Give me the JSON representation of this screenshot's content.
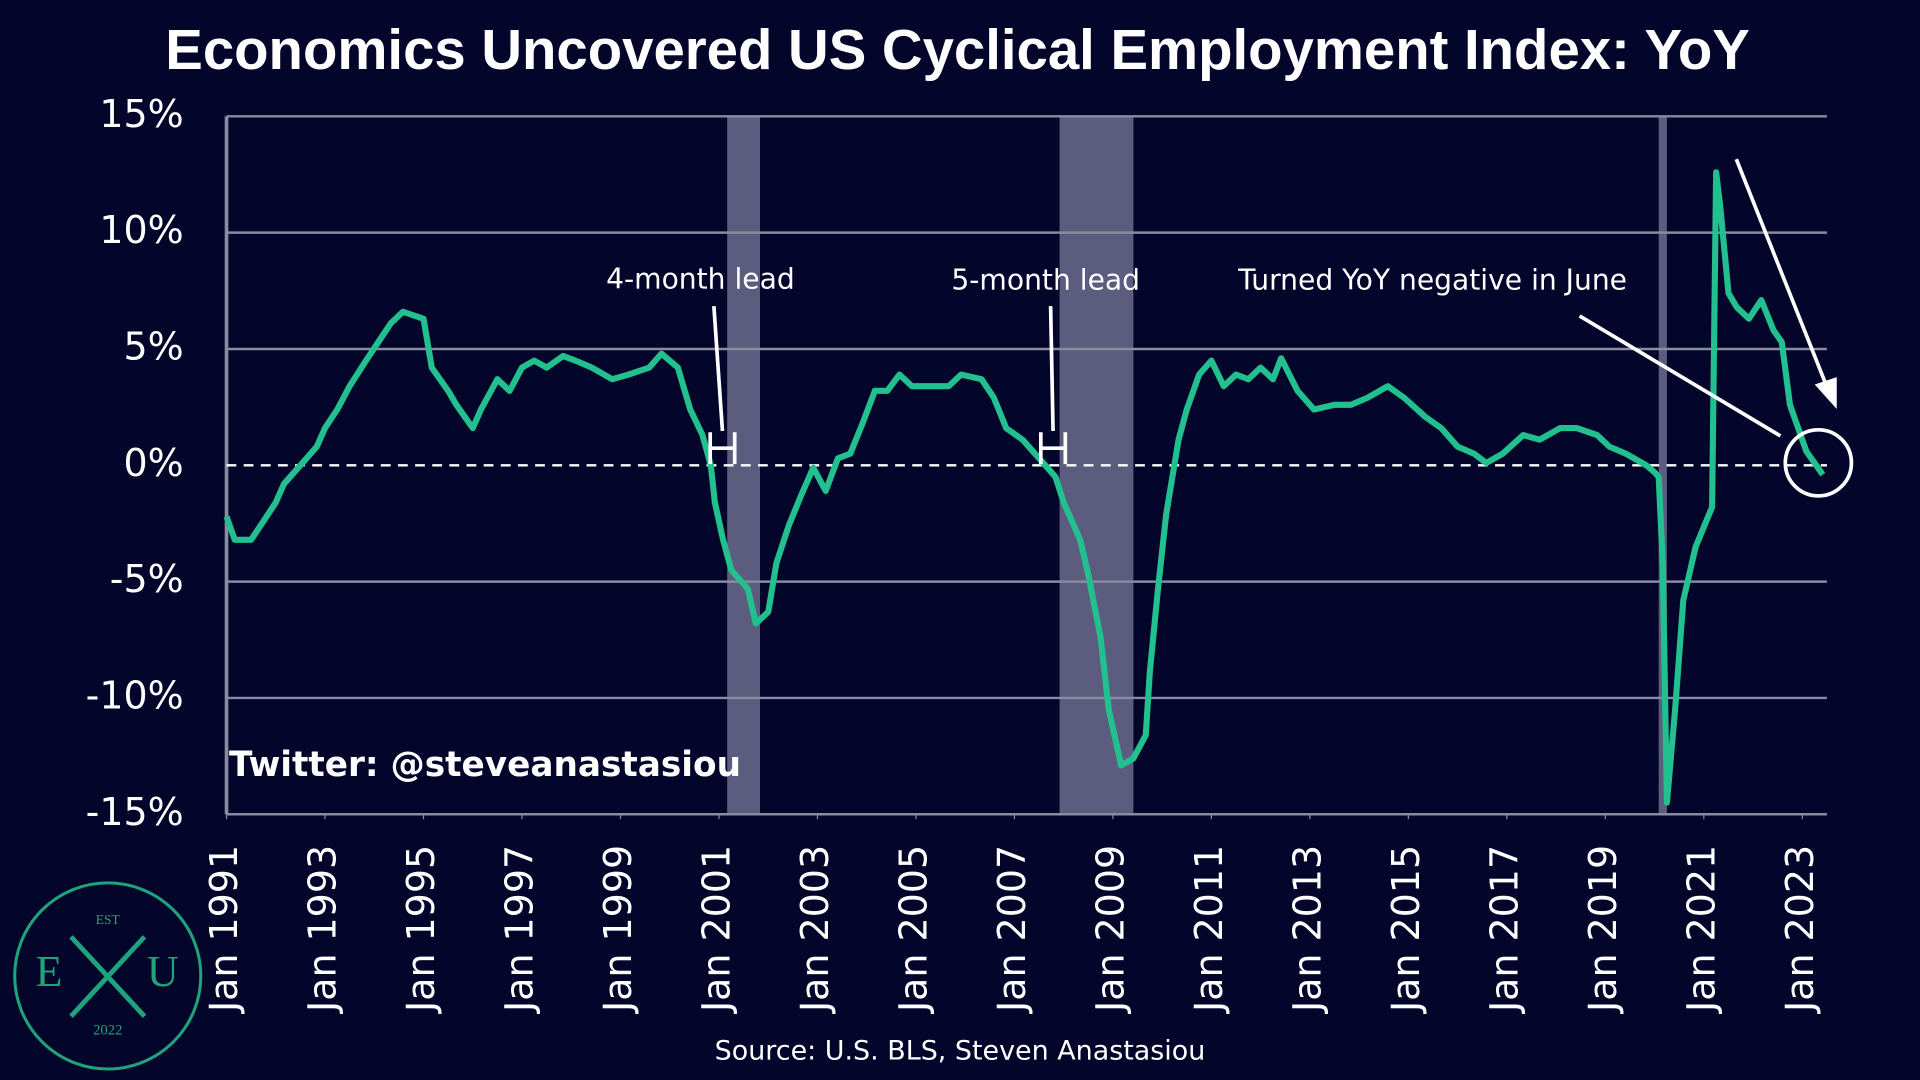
{
  "chart_data": {
    "type": "line",
    "title": "Economics Uncovered US Cyclical Employment Index: YoY",
    "source": "Source: U.S. BLS, Steven Anastasiou",
    "watermark": "Twitter: @steveanastasiou",
    "annotations": [
      "4-month lead",
      "5-month lead",
      "Turned YoY negative in June"
    ],
    "logo": {
      "top": "EST",
      "left": "E",
      "right": "U",
      "bottom": "2022"
    },
    "x": [
      "1991-01",
      "1991-03",
      "1991-07",
      "1991-10",
      "1992-01",
      "1992-03",
      "1992-07",
      "1992-11",
      "1993-01",
      "1993-04",
      "1993-07",
      "1993-11",
      "1994-02",
      "1994-05",
      "1994-08",
      "1995-01",
      "1995-03",
      "1995-07",
      "1995-09",
      "1996-01",
      "1996-03",
      "1996-07",
      "1996-10",
      "1997-01",
      "1997-04",
      "1997-07",
      "1997-11",
      "1998-02",
      "1998-06",
      "1998-11",
      "1999-03",
      "1999-08",
      "1999-11",
      "2000-01",
      "2000-03",
      "2000-06",
      "2000-09",
      "2000-11",
      "2000-12",
      "2001-02",
      "2001-04",
      "2001-08",
      "2001-10",
      "2002-01",
      "2002-03",
      "2002-06",
      "2002-09",
      "2002-12",
      "2003-03",
      "2003-06",
      "2003-09",
      "2003-12",
      "2004-03",
      "2004-06",
      "2004-09",
      "2004-12",
      "2005-05",
      "2005-09",
      "2005-12",
      "2006-05",
      "2006-08",
      "2006-11",
      "2007-03",
      "2007-07",
      "2007-11",
      "2008-01",
      "2008-05",
      "2008-07",
      "2008-10",
      "2008-12",
      "2009-03",
      "2009-06",
      "2009-09",
      "2009-10",
      "2009-12",
      "2010-02",
      "2010-05",
      "2010-07",
      "2010-10",
      "2011-01",
      "2011-04",
      "2011-07",
      "2011-10",
      "2012-01",
      "2012-04",
      "2012-06",
      "2012-10",
      "2013-02",
      "2013-07",
      "2013-11",
      "2014-03",
      "2014-08",
      "2014-12",
      "2015-05",
      "2015-09",
      "2016-01",
      "2016-05",
      "2016-08",
      "2016-12",
      "2017-05",
      "2017-09",
      "2018-02",
      "2018-06",
      "2018-11",
      "2019-02",
      "2019-06",
      "2019-11",
      "2020-01",
      "2020-02",
      "2020-03",
      "2020-04",
      "2020-06",
      "2020-08",
      "2020-11",
      "2021-03",
      "2021-04",
      "2021-05",
      "2021-07",
      "2021-09",
      "2021-12",
      "2022-03",
      "2022-06",
      "2022-08",
      "2022-10",
      "2022-12",
      "2023-02",
      "2023-04",
      "2023-06"
    ],
    "series": [
      {
        "name": "Cyclical Employment Index YoY",
        "color": "#22c08f",
        "values": [
          -2.2,
          -3.2,
          -3.2,
          -2.4,
          -1.6,
          -0.8,
          0,
          0.8,
          1.6,
          2.4,
          3.4,
          4.5,
          5.3,
          6.1,
          6.6,
          6.3,
          4.2,
          3.2,
          2.6,
          1.6,
          2.4,
          3.7,
          3.2,
          4.2,
          4.5,
          4.2,
          4.7,
          4.5,
          4.2,
          3.7,
          3.9,
          4.2,
          4.8,
          4.5,
          4.2,
          2.4,
          1.3,
          0,
          -1.6,
          -3.2,
          -4.5,
          -5.3,
          -6.8,
          -6.3,
          -4.2,
          -2.6,
          -1.3,
          -0.1,
          -1.1,
          0.3,
          0.5,
          1.8,
          3.2,
          3.2,
          3.9,
          3.4,
          3.4,
          3.4,
          3.9,
          3.7,
          2.9,
          1.6,
          1.1,
          0.3,
          -0.5,
          -1.6,
          -3.2,
          -4.7,
          -7.4,
          -10.5,
          -12.9,
          -12.6,
          -11.6,
          -8.9,
          -5.3,
          -2.1,
          1.1,
          2.4,
          3.9,
          4.5,
          3.4,
          3.9,
          3.7,
          4.2,
          3.7,
          4.6,
          3.2,
          2.4,
          2.6,
          2.6,
          2.9,
          3.4,
          2.9,
          2.1,
          1.6,
          0.8,
          0.5,
          0.1,
          0.5,
          1.3,
          1.1,
          1.6,
          1.6,
          1.3,
          0.8,
          0.5,
          0,
          -0.3,
          -0.5,
          -4.2,
          -14.5,
          -10.5,
          -5.8,
          -3.5,
          -1.8,
          12.6,
          11.1,
          7.4,
          6.8,
          6.3,
          7.1,
          5.8,
          5.3,
          2.6,
          1.6,
          0.6,
          0.1,
          -0.4
        ]
      }
    ],
    "recessions": [
      {
        "start": "2001-03",
        "end": "2001-11"
      },
      {
        "start": "2007-12",
        "end": "2009-06"
      },
      {
        "start": "2020-02",
        "end": "2020-04"
      }
    ],
    "xlim": [
      "1991-01",
      "2023-07"
    ],
    "xticks": [
      {
        "value": "1991-01",
        "label": "Jan 1991"
      },
      {
        "value": "1993-01",
        "label": "Jan 1993"
      },
      {
        "value": "1995-01",
        "label": "Jan 1995"
      },
      {
        "value": "1997-01",
        "label": "Jan 1997"
      },
      {
        "value": "1999-01",
        "label": "Jan 1999"
      },
      {
        "value": "2001-01",
        "label": "Jan 2001"
      },
      {
        "value": "2003-01",
        "label": "Jan 2003"
      },
      {
        "value": "2005-01",
        "label": "Jan 2005"
      },
      {
        "value": "2007-01",
        "label": "Jan 2007"
      },
      {
        "value": "2009-01",
        "label": "Jan 2009"
      },
      {
        "value": "2011-01",
        "label": "Jan 2011"
      },
      {
        "value": "2013-01",
        "label": "Jan 2013"
      },
      {
        "value": "2015-01",
        "label": "Jan 2015"
      },
      {
        "value": "2017-01",
        "label": "Jan 2017"
      },
      {
        "value": "2019-01",
        "label": "Jan 2019"
      },
      {
        "value": "2021-01",
        "label": "Jan 2021"
      },
      {
        "value": "2023-01",
        "label": "Jan 2023"
      }
    ],
    "ylim": [
      -15,
      15
    ],
    "yticks": [
      {
        "value": 15,
        "label": "15%"
      },
      {
        "value": 10,
        "label": "10%"
      },
      {
        "value": 5,
        "label": "5%"
      },
      {
        "value": 0,
        "label": "0%"
      },
      {
        "value": -5,
        "label": "-5%"
      },
      {
        "value": -10,
        "label": "-10%"
      },
      {
        "value": -15,
        "label": "-15%"
      }
    ],
    "grid": true
  }
}
